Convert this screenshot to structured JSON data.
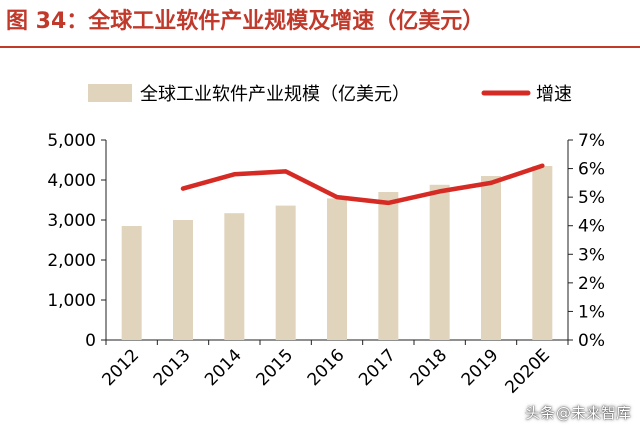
{
  "title": "图 34：全球工业软件产业规模及增速（亿美元）",
  "watermark": {
    "prefix": "头条",
    "handle": "@未来智库"
  },
  "colors": {
    "bar": "#e1d4bd",
    "line": "#d62b24",
    "title": "#c0392b",
    "axis": "#222222"
  },
  "chart_data": {
    "type": "bar",
    "categories": [
      "2012",
      "2013",
      "2014",
      "2015",
      "2016",
      "2017",
      "2018",
      "2019",
      "2020E"
    ],
    "series": [
      {
        "name": "全球工业软件产业规模（亿美元）",
        "type": "bar",
        "axis": "left",
        "values": [
          2850,
          3000,
          3170,
          3360,
          3540,
          3700,
          3880,
          4100,
          4350
        ]
      },
      {
        "name": "增速",
        "type": "line",
        "axis": "right",
        "values": [
          null,
          5.3,
          5.8,
          5.9,
          5.0,
          4.8,
          5.2,
          5.5,
          6.1
        ]
      }
    ],
    "y_left": {
      "min": 0,
      "max": 5000,
      "ticks": [
        "0",
        "1,000",
        "2,000",
        "3,000",
        "4,000",
        "5,000"
      ]
    },
    "y_right": {
      "min": 0,
      "max": 7,
      "ticks": [
        "0%",
        "1%",
        "2%",
        "3%",
        "4%",
        "5%",
        "6%",
        "7%"
      ]
    },
    "legend_position": "top",
    "grid": false
  }
}
